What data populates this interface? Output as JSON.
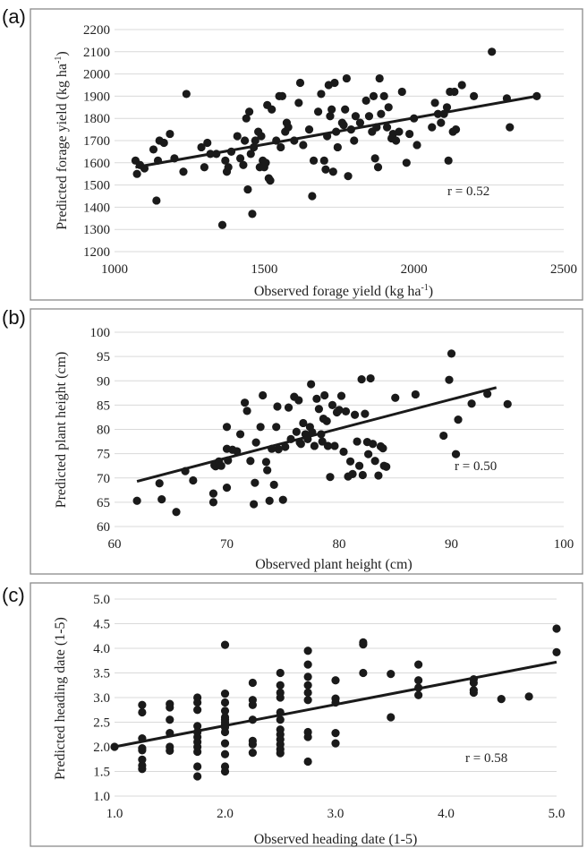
{
  "chart_data": [
    {
      "type": "scatter",
      "panel": "(a)",
      "xlabel": "Observed forage yield (kg ha",
      "ylabel": "Predicted forage yield (kg ha",
      "unit_sup": "-1",
      "unit_close": ")",
      "xlim": [
        1000,
        2500
      ],
      "ylim": [
        1200,
        2200
      ],
      "xticks": [
        "1000",
        "1500",
        "2000",
        "2500"
      ],
      "yticks": [
        "1200",
        "1300",
        "1400",
        "1500",
        "1600",
        "1700",
        "1800",
        "1900",
        "2000",
        "2100",
        "2200"
      ],
      "annotation": "r = 0.52",
      "grid": true,
      "trend": [
        [
          1070,
          1580
        ],
        [
          2410,
          1900
        ]
      ],
      "points": [
        [
          1070,
          1610
        ],
        [
          1075,
          1550
        ],
        [
          1085,
          1590
        ],
        [
          1100,
          1575
        ],
        [
          1130,
          1660
        ],
        [
          1140,
          1430
        ],
        [
          1145,
          1610
        ],
        [
          1150,
          1700
        ],
        [
          1165,
          1690
        ],
        [
          1185,
          1730
        ],
        [
          1200,
          1620
        ],
        [
          1230,
          1560
        ],
        [
          1240,
          1910
        ],
        [
          1290,
          1670
        ],
        [
          1300,
          1580
        ],
        [
          1310,
          1690
        ],
        [
          1320,
          1640
        ],
        [
          1340,
          1640
        ],
        [
          1360,
          1320
        ],
        [
          1370,
          1610
        ],
        [
          1375,
          1560
        ],
        [
          1380,
          1580
        ],
        [
          1390,
          1650
        ],
        [
          1410,
          1720
        ],
        [
          1420,
          1620
        ],
        [
          1430,
          1590
        ],
        [
          1435,
          1700
        ],
        [
          1440,
          1800
        ],
        [
          1445,
          1480
        ],
        [
          1450,
          1830
        ],
        [
          1455,
          1640
        ],
        [
          1460,
          1370
        ],
        [
          1465,
          1670
        ],
        [
          1470,
          1700
        ],
        [
          1480,
          1740
        ],
        [
          1485,
          1580
        ],
        [
          1490,
          1720
        ],
        [
          1495,
          1610
        ],
        [
          1500,
          1580
        ],
        [
          1505,
          1600
        ],
        [
          1510,
          1860
        ],
        [
          1515,
          1530
        ],
        [
          1520,
          1520
        ],
        [
          1525,
          1840
        ],
        [
          1540,
          1700
        ],
        [
          1550,
          1900
        ],
        [
          1555,
          1670
        ],
        [
          1560,
          1900
        ],
        [
          1570,
          1740
        ],
        [
          1575,
          1780
        ],
        [
          1580,
          1760
        ],
        [
          1600,
          1700
        ],
        [
          1615,
          1870
        ],
        [
          1620,
          1960
        ],
        [
          1630,
          1680
        ],
        [
          1650,
          1750
        ],
        [
          1660,
          1450
        ],
        [
          1665,
          1610
        ],
        [
          1680,
          1830
        ],
        [
          1690,
          1910
        ],
        [
          1700,
          1610
        ],
        [
          1705,
          1570
        ],
        [
          1710,
          1720
        ],
        [
          1715,
          1950
        ],
        [
          1720,
          1810
        ],
        [
          1725,
          1840
        ],
        [
          1730,
          1560
        ],
        [
          1735,
          1960
        ],
        [
          1740,
          1740
        ],
        [
          1745,
          1670
        ],
        [
          1760,
          1780
        ],
        [
          1765,
          1770
        ],
        [
          1770,
          1840
        ],
        [
          1775,
          1980
        ],
        [
          1780,
          1540
        ],
        [
          1790,
          1750
        ],
        [
          1800,
          1700
        ],
        [
          1805,
          1810
        ],
        [
          1820,
          1780
        ],
        [
          1840,
          1880
        ],
        [
          1850,
          1810
        ],
        [
          1860,
          1740
        ],
        [
          1865,
          1900
        ],
        [
          1870,
          1620
        ],
        [
          1875,
          1760
        ],
        [
          1880,
          1580
        ],
        [
          1885,
          1980
        ],
        [
          1890,
          1820
        ],
        [
          1900,
          1900
        ],
        [
          1910,
          1760
        ],
        [
          1915,
          1850
        ],
        [
          1925,
          1710
        ],
        [
          1930,
          1730
        ],
        [
          1940,
          1700
        ],
        [
          1950,
          1740
        ],
        [
          1960,
          1920
        ],
        [
          1975,
          1600
        ],
        [
          1985,
          1730
        ],
        [
          2000,
          1800
        ],
        [
          2010,
          1680
        ],
        [
          2060,
          1760
        ],
        [
          2070,
          1870
        ],
        [
          2080,
          1820
        ],
        [
          2090,
          1780
        ],
        [
          2100,
          1820
        ],
        [
          2110,
          1850
        ],
        [
          2115,
          1610
        ],
        [
          2120,
          1920
        ],
        [
          2130,
          1740
        ],
        [
          2135,
          1920
        ],
        [
          2140,
          1750
        ],
        [
          2160,
          1950
        ],
        [
          2200,
          1900
        ],
        [
          2260,
          2100
        ],
        [
          2310,
          1890
        ],
        [
          2320,
          1760
        ],
        [
          2410,
          1900
        ]
      ]
    },
    {
      "type": "scatter",
      "panel": "(b)",
      "xlabel": "Observed plant height (cm)",
      "ylabel": "Predicted plant height (cm)",
      "xlim": [
        60,
        100
      ],
      "ylim": [
        60,
        100
      ],
      "xticks": [
        "60",
        "70",
        "80",
        "90",
        "100"
      ],
      "yticks": [
        "60",
        "65",
        "70",
        "75",
        "80",
        "85",
        "90",
        "95",
        "100"
      ],
      "annotation": "r = 0.50",
      "grid": true,
      "trend": [
        [
          62,
          69.3
        ],
        [
          94,
          88.6
        ]
      ],
      "points": [
        [
          62,
          65.3
        ],
        [
          64,
          68.9
        ],
        [
          64.2,
          65.6
        ],
        [
          65.5,
          63
        ],
        [
          66.3,
          71.4
        ],
        [
          67,
          69.5
        ],
        [
          68.8,
          66.8
        ],
        [
          68.8,
          65
        ],
        [
          68.9,
          72.6
        ],
        [
          69,
          72.4
        ],
        [
          69.3,
          73.4
        ],
        [
          69.5,
          72.5
        ],
        [
          70,
          76
        ],
        [
          70,
          80.5
        ],
        [
          70,
          68
        ],
        [
          70.1,
          73.6
        ],
        [
          70.5,
          75.8
        ],
        [
          70.9,
          75.5
        ],
        [
          71.2,
          79
        ],
        [
          71.6,
          85.5
        ],
        [
          71.8,
          83.8
        ],
        [
          72.1,
          73.5
        ],
        [
          72.4,
          64.6
        ],
        [
          72.5,
          69
        ],
        [
          72.6,
          77.3
        ],
        [
          73,
          80.5
        ],
        [
          73.2,
          87
        ],
        [
          73.5,
          73.3
        ],
        [
          73.6,
          71.6
        ],
        [
          73.8,
          65.3
        ],
        [
          74,
          76
        ],
        [
          74.2,
          68.6
        ],
        [
          74.4,
          80.5
        ],
        [
          74.5,
          84.7
        ],
        [
          74.6,
          75.9
        ],
        [
          75,
          65.5
        ],
        [
          75.2,
          76.4
        ],
        [
          75.5,
          84.5
        ],
        [
          75.7,
          78
        ],
        [
          76,
          86.7
        ],
        [
          76.2,
          79.5
        ],
        [
          76.4,
          86
        ],
        [
          76.5,
          77.3
        ],
        [
          76.6,
          77
        ],
        [
          76.8,
          81.3
        ],
        [
          77,
          79
        ],
        [
          77.2,
          78
        ],
        [
          77.4,
          80.5
        ],
        [
          77.5,
          89.3
        ],
        [
          77.8,
          76.6
        ],
        [
          78,
          86.3
        ],
        [
          78.2,
          84.2
        ],
        [
          78.4,
          79
        ],
        [
          78.5,
          77.5
        ],
        [
          78.7,
          87
        ],
        [
          78.9,
          81.7
        ],
        [
          79,
          76.6
        ],
        [
          79.2,
          70.2
        ],
        [
          79.4,
          85
        ],
        [
          79.6,
          76.6
        ],
        [
          79.8,
          83.5
        ],
        [
          80,
          84
        ],
        [
          80.2,
          86.9
        ],
        [
          80.4,
          75.4
        ],
        [
          80.6,
          83.7
        ],
        [
          80.8,
          70.3
        ],
        [
          81,
          73.4
        ],
        [
          81.2,
          70.8
        ],
        [
          81.4,
          83
        ],
        [
          81.6,
          77.5
        ],
        [
          81.8,
          72.5
        ],
        [
          82,
          90.3
        ],
        [
          82.1,
          70.6
        ],
        [
          82.3,
          83.2
        ],
        [
          82.5,
          77.4
        ],
        [
          82.6,
          74.9
        ],
        [
          82.8,
          90.5
        ],
        [
          83,
          77
        ],
        [
          83.2,
          73.5
        ],
        [
          83.5,
          70.5
        ],
        [
          83.7,
          76.5
        ],
        [
          83.9,
          76.1
        ],
        [
          84,
          72.5
        ],
        [
          84.2,
          72.3
        ],
        [
          85,
          86.5
        ],
        [
          86.8,
          87.2
        ],
        [
          89.3,
          78.7
        ],
        [
          89.8,
          90.2
        ],
        [
          90,
          95.6
        ],
        [
          90.4,
          74.9
        ],
        [
          90.6,
          82
        ],
        [
          91.8,
          85.3
        ],
        [
          93.2,
          87.3
        ],
        [
          95,
          85.2
        ],
        [
          77.6,
          79.4
        ],
        [
          78.6,
          82.2
        ]
      ]
    },
    {
      "type": "scatter",
      "panel": "(c)",
      "xlabel": "Observed heading date (1-5)",
      "ylabel": "Predicted heading date (1-5)",
      "xlim": [
        1.0,
        5.0
      ],
      "ylim": [
        1.0,
        5.0
      ],
      "xticks": [
        "1.0",
        "2.0",
        "3.0",
        "4.0",
        "5.0"
      ],
      "yticks": [
        "1.0",
        "1.5",
        "2.0",
        "2.5",
        "3.0",
        "3.5",
        "4.0",
        "4.5",
        "5.0"
      ],
      "annotation": "r = 0.58",
      "grid": true,
      "trend": [
        [
          1.0,
          2.0
        ],
        [
          5.0,
          3.72
        ]
      ],
      "points": [
        [
          1.0,
          2.0
        ],
        [
          1.25,
          2.85
        ],
        [
          1.25,
          2.7
        ],
        [
          1.25,
          2.17
        ],
        [
          1.25,
          1.97
        ],
        [
          1.25,
          1.93
        ],
        [
          1.25,
          1.74
        ],
        [
          1.25,
          1.62
        ],
        [
          1.25,
          1.55
        ],
        [
          1.5,
          2.87
        ],
        [
          1.5,
          2.8
        ],
        [
          1.5,
          2.55
        ],
        [
          1.5,
          2.28
        ],
        [
          1.5,
          2.0
        ],
        [
          1.5,
          1.92
        ],
        [
          1.75,
          3.0
        ],
        [
          1.75,
          2.9
        ],
        [
          1.75,
          2.75
        ],
        [
          1.75,
          2.42
        ],
        [
          1.75,
          2.3
        ],
        [
          1.75,
          2.2
        ],
        [
          1.75,
          2.1
        ],
        [
          1.75,
          2.0
        ],
        [
          1.75,
          1.9
        ],
        [
          1.75,
          1.6
        ],
        [
          1.75,
          1.4
        ],
        [
          2.0,
          4.07
        ],
        [
          2.0,
          3.08
        ],
        [
          2.0,
          2.9
        ],
        [
          2.0,
          2.73
        ],
        [
          2.0,
          2.6
        ],
        [
          2.0,
          2.55
        ],
        [
          2.0,
          2.5
        ],
        [
          2.0,
          2.45
        ],
        [
          2.0,
          2.4
        ],
        [
          2.0,
          2.3
        ],
        [
          2.0,
          2.07
        ],
        [
          2.0,
          1.85
        ],
        [
          2.0,
          1.6
        ],
        [
          2.0,
          1.5
        ],
        [
          2.25,
          3.3
        ],
        [
          2.25,
          2.95
        ],
        [
          2.25,
          2.85
        ],
        [
          2.25,
          2.55
        ],
        [
          2.25,
          2.12
        ],
        [
          2.25,
          2.05
        ],
        [
          2.25,
          1.88
        ],
        [
          2.5,
          3.5
        ],
        [
          2.5,
          3.25
        ],
        [
          2.5,
          3.1
        ],
        [
          2.5,
          3.0
        ],
        [
          2.5,
          2.7
        ],
        [
          2.5,
          2.55
        ],
        [
          2.5,
          2.35
        ],
        [
          2.5,
          2.25
        ],
        [
          2.5,
          2.15
        ],
        [
          2.5,
          2.05
        ],
        [
          2.5,
          1.95
        ],
        [
          2.5,
          1.87
        ],
        [
          2.75,
          3.95
        ],
        [
          2.75,
          3.67
        ],
        [
          2.75,
          3.42
        ],
        [
          2.75,
          3.25
        ],
        [
          2.75,
          3.1
        ],
        [
          2.75,
          2.95
        ],
        [
          2.75,
          2.3
        ],
        [
          2.75,
          2.2
        ],
        [
          2.75,
          1.7
        ],
        [
          3.0,
          3.35
        ],
        [
          3.0,
          2.98
        ],
        [
          3.0,
          2.9
        ],
        [
          3.0,
          2.28
        ],
        [
          3.0,
          2.07
        ],
        [
          3.25,
          4.12
        ],
        [
          3.25,
          4.08
        ],
        [
          3.25,
          3.5
        ],
        [
          3.5,
          3.48
        ],
        [
          3.5,
          2.6
        ],
        [
          3.75,
          3.67
        ],
        [
          3.75,
          3.35
        ],
        [
          3.75,
          3.2
        ],
        [
          3.75,
          3.05
        ],
        [
          4.25,
          3.37
        ],
        [
          4.25,
          3.3
        ],
        [
          4.25,
          3.15
        ],
        [
          4.25,
          3.1
        ],
        [
          4.5,
          2.97
        ],
        [
          4.75,
          3.02
        ],
        [
          5.0,
          4.4
        ],
        [
          5.0,
          3.92
        ]
      ]
    }
  ]
}
